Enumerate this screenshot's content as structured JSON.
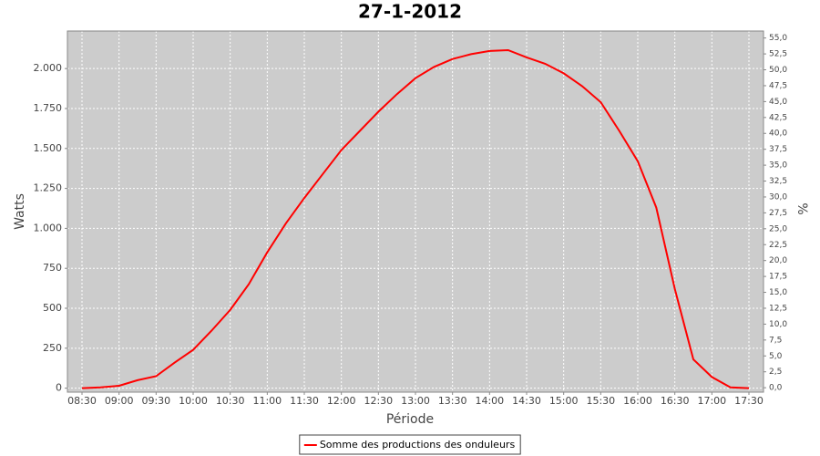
{
  "chart_data": {
    "type": "line",
    "title": "27-1-2012",
    "x_label": "Période",
    "y_label": "Watts",
    "y2_label": "%",
    "x": [
      "08:30",
      null,
      "09:00",
      null,
      "09:30",
      null,
      "10:00",
      null,
      "10:30",
      null,
      "11:00",
      null,
      "11:30",
      null,
      "12:00",
      null,
      "12:30",
      null,
      "13:00",
      null,
      "13:30",
      null,
      "14:00",
      null,
      "14:30",
      null,
      "15:00",
      null,
      "15:30",
      null,
      "16:00",
      null,
      "16:30",
      null,
      "17:00",
      null,
      "17:30"
    ],
    "series": [
      {
        "name": "Somme des productions des onduleurs",
        "color": "#ff0000",
        "values": [
          0,
          5,
          15,
          50,
          75,
          160,
          240,
          360,
          490,
          650,
          850,
          1030,
          1190,
          1340,
          1490,
          1610,
          1730,
          1840,
          1940,
          2010,
          2060,
          2090,
          2110,
          2115,
          2070,
          2030,
          1970,
          1890,
          1790,
          1610,
          1420,
          1130,
          620,
          180,
          70,
          5,
          0
        ]
      }
    ],
    "ylim": [
      -25,
      2235
    ],
    "yticks": [
      0,
      250,
      500,
      750,
      {
        "value": 1000,
        "label": "1.000"
      },
      {
        "value": 1250,
        "label": "1.250"
      },
      {
        "value": 1500,
        "label": "1.500"
      },
      {
        "value": 1750,
        "label": "1.750"
      },
      {
        "value": 2000,
        "label": "2.000"
      }
    ],
    "y2lim": [
      -0.7,
      56.1
    ],
    "y2ticks": [
      {
        "value": 0,
        "label": "0,0"
      },
      {
        "value": 2.5,
        "label": "2,5"
      },
      {
        "value": 5,
        "label": "5,0"
      },
      {
        "value": 7.5,
        "label": "7,5"
      },
      {
        "value": 10,
        "label": "10,0"
      },
      {
        "value": 12.5,
        "label": "12,5"
      },
      {
        "value": 15,
        "label": "15,0"
      },
      {
        "value": 17.5,
        "label": "17,5"
      },
      {
        "value": 20,
        "label": "20,0"
      },
      {
        "value": 22.5,
        "label": "22,5"
      },
      {
        "value": 25,
        "label": "25,0"
      },
      {
        "value": 27.5,
        "label": "27,5"
      },
      {
        "value": 30,
        "label": "30,0"
      },
      {
        "value": 32.5,
        "label": "32,5"
      },
      {
        "value": 35,
        "label": "35,0"
      },
      {
        "value": 37.5,
        "label": "37,5"
      },
      {
        "value": 40,
        "label": "40,0"
      },
      {
        "value": 42.5,
        "label": "42,5"
      },
      {
        "value": 45,
        "label": "45,0"
      },
      {
        "value": 47.5,
        "label": "47,5"
      },
      {
        "value": 50,
        "label": "50,0"
      },
      {
        "value": 52.5,
        "label": "52,5"
      },
      {
        "value": 55,
        "label": "55,0"
      }
    ],
    "grid": true,
    "plot_background": "#cccccc",
    "legend": "bottom"
  }
}
